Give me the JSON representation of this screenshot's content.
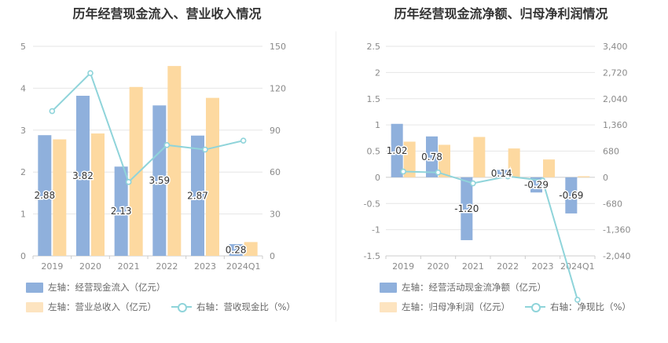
{
  "chart_data": [
    {
      "type": "bar",
      "title": "历年经营现金流入、营业收入情况",
      "categories": [
        "2019",
        "2020",
        "2021",
        "2022",
        "2023",
        "2024Q1"
      ],
      "y_left_ticks": [
        "0",
        "1",
        "2",
        "3",
        "4",
        "5"
      ],
      "y_right_ticks": [
        "0",
        "30",
        "60",
        "90",
        "120",
        "150"
      ],
      "ylim_left": [
        0,
        5
      ],
      "ylim_right": [
        0,
        150
      ],
      "series": [
        {
          "name": "左轴：经营现金流入（亿元）",
          "axis": "left",
          "kind": "bar",
          "color": "#8fb0dc",
          "values": [
            2.88,
            3.82,
            2.13,
            3.59,
            2.87,
            0.28
          ],
          "labels": [
            "2.88",
            "3.82",
            "2.13",
            "3.59",
            "2.87",
            "0.28"
          ]
        },
        {
          "name": "左轴：营业总收入（亿元）",
          "axis": "left",
          "kind": "bar",
          "color": "#fdd9a0",
          "values": [
            2.78,
            2.92,
            4.03,
            4.53,
            3.77,
            0.33
          ]
        },
        {
          "name": "右轴：营收现金比（%）",
          "axis": "right",
          "kind": "line",
          "color": "#8fd4da",
          "values": [
            103.6,
            130.8,
            52.9,
            79.3,
            76.1,
            82.5
          ]
        }
      ]
    },
    {
      "type": "bar",
      "title": "历年经营现金流净额、归母净利润情况",
      "categories": [
        "2019",
        "2020",
        "2021",
        "2022",
        "2023",
        "2024Q1"
      ],
      "y_left_ticks": [
        "-1.5",
        "-1",
        "-0.5",
        "0",
        "0.5",
        "1",
        "1.5",
        "2",
        "2.5"
      ],
      "y_right_ticks": [
        "-2,040",
        "-1,360",
        "-680",
        "0",
        "680",
        "1,360",
        "2,040",
        "2,720",
        "3,400"
      ],
      "ylim_left": [
        -1.5,
        2.5
      ],
      "ylim_right": [
        -2040,
        3400
      ],
      "series": [
        {
          "name": "左轴：经营活动现金流净额（亿元）",
          "axis": "left",
          "kind": "bar",
          "color": "#8fb0dc",
          "values": [
            1.02,
            0.78,
            -1.2,
            0.14,
            -0.29,
            -0.69
          ],
          "labels": [
            "1.02",
            "0.78",
            "-1.20",
            "0.14",
            "-0.29",
            "-0.69"
          ]
        },
        {
          "name": "左轴：归母净利润（亿元）",
          "axis": "left",
          "kind": "bar",
          "color": "#fdd9a0",
          "values": [
            0.68,
            0.62,
            0.77,
            0.55,
            0.34,
            0.02
          ]
        },
        {
          "name": "右轴：净现比（%）",
          "axis": "right",
          "kind": "line",
          "color": "#8fd4da",
          "values": [
            150,
            126,
            -156,
            25,
            -85,
            -3180
          ]
        }
      ]
    }
  ]
}
